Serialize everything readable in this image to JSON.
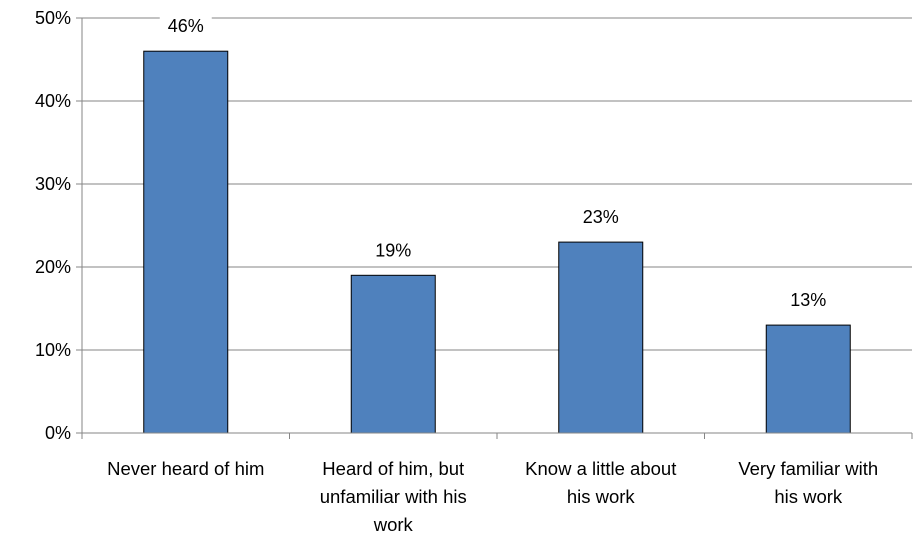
{
  "chart_data": {
    "type": "bar",
    "title": "",
    "xlabel": "",
    "ylabel": "",
    "categories": [
      [
        "Never heard of him"
      ],
      [
        "Heard of him, but",
        "unfamiliar with his",
        "work"
      ],
      [
        "Know a little about",
        "his work"
      ],
      [
        "Very familiar with",
        "his work"
      ]
    ],
    "values": [
      46,
      19,
      23,
      13
    ],
    "data_labels": [
      "46%",
      "19%",
      "23%",
      "13%"
    ],
    "ylim": [
      0,
      50
    ],
    "yticks": [
      0,
      10,
      20,
      30,
      40,
      50
    ],
    "ytick_labels": [
      "0%",
      "10%",
      "20%",
      "30%",
      "40%",
      "50%"
    ],
    "grid": true,
    "legend": "none",
    "colors": {
      "bar_fill": "#4F81BD",
      "bar_stroke": "#000000",
      "grid": "#868686",
      "axis": "#868686",
      "text": "#000000"
    }
  }
}
